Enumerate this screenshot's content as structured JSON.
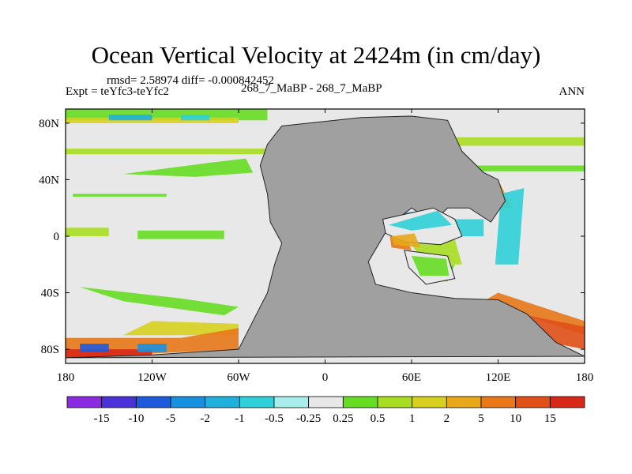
{
  "chart_data": {
    "type": "heatmap",
    "title": "Ocean Vertical Velocity at 2424m (in cm/day)",
    "stats_label": "rmsd= 2.58974 diff= -0.000842452",
    "expt_label": "Expt = teYfc3-teYfc2",
    "center_label": "268_7_MaBP - 268_7_MaBP",
    "season_label": "ANN",
    "x_axis": {
      "range": [
        -180,
        180
      ],
      "ticks": [
        -180,
        -120,
        -60,
        0,
        60,
        120,
        180
      ],
      "tick_labels": [
        "180",
        "120W",
        "60W",
        "0",
        "60E",
        "120E",
        "180"
      ]
    },
    "y_axis": {
      "range": [
        -90,
        90
      ],
      "ticks": [
        80,
        40,
        0,
        -40,
        -80
      ],
      "tick_labels": [
        "80N",
        "40N",
        "0",
        "40S",
        "80S"
      ]
    },
    "colorbar": {
      "levels": [
        "-15",
        "-10",
        "-5",
        "-2",
        "-1",
        "-0.5",
        "-0.25",
        "0.25",
        "0.5",
        "1",
        "2",
        "5",
        "10",
        "15"
      ],
      "colors": [
        "#8a2be2",
        "#4b32d8",
        "#1e5bdc",
        "#1890e0",
        "#20b0dc",
        "#30d0d8",
        "#a8ecec",
        "#e8e8e8",
        "#66dd22",
        "#a8dd22",
        "#d8d020",
        "#e8a81a",
        "#e87818",
        "#e05018",
        "#d82818"
      ]
    },
    "land_color": "#a0a0a0",
    "near_zero_color": "#e8e8e8",
    "landmass_outline": [
      [
        -30,
        78
      ],
      [
        25,
        84
      ],
      [
        60,
        85
      ],
      [
        85,
        82
      ],
      [
        95,
        60
      ],
      [
        110,
        45
      ],
      [
        120,
        40
      ],
      [
        125,
        25
      ],
      [
        115,
        10
      ],
      [
        100,
        20
      ],
      [
        85,
        20
      ],
      [
        75,
        10
      ],
      [
        60,
        20
      ],
      [
        45,
        8
      ],
      [
        30,
        -18
      ],
      [
        35,
        -34
      ],
      [
        60,
        -40
      ],
      [
        90,
        -44
      ],
      [
        120,
        -45
      ],
      [
        140,
        -55
      ],
      [
        160,
        -75
      ],
      [
        180,
        -85
      ],
      [
        -180,
        -86
      ],
      [
        -120,
        -84
      ],
      [
        -60,
        -80
      ],
      [
        -50,
        -60
      ],
      [
        -40,
        -40
      ],
      [
        -35,
        -20
      ],
      [
        -30,
        -5
      ],
      [
        -38,
        10
      ],
      [
        -40,
        30
      ],
      [
        -45,
        50
      ],
      [
        -40,
        65
      ]
    ]
  }
}
